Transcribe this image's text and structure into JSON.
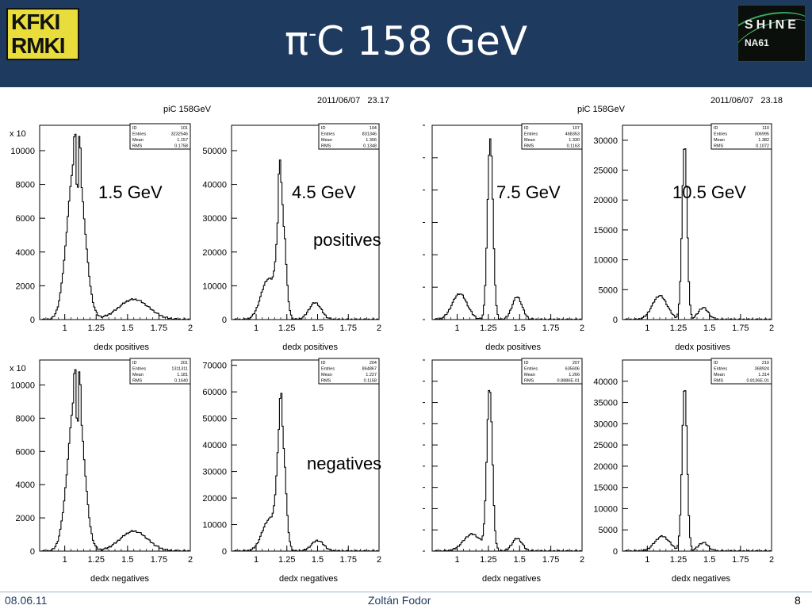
{
  "header": {
    "title_pre": "π",
    "title_sup": "-",
    "title_post": "C 158 GeV",
    "logo_left_line1": "KFKI",
    "logo_left_line2": "RMKI",
    "logo_right_line1": "SHINE",
    "logo_right_line2": "NA61"
  },
  "footer": {
    "date": "08.06.11",
    "author": "Zoltán Fodor",
    "page": "8"
  },
  "row_labels": {
    "positives": "positives",
    "negatives": "negatives"
  },
  "chart_data": [
    {
      "type": "histogram",
      "group": "left",
      "canvas_title": "piC 158GeV",
      "timestamp": "2011/06/07   23.17",
      "panels": [
        {
          "momentum_label": "1.5 GeV",
          "xlabel": "dedx positives",
          "y_multiplier": "x 10",
          "stats": {
            "ID": "101",
            "Entries": "3232546",
            "Mean": "1.157",
            "RMS": "0.1758"
          },
          "xlim": [
            0.8,
            2.0
          ],
          "ylim": [
            0,
            11500
          ],
          "xticks": [
            "1",
            "1.25",
            "1.5",
            "1.75",
            "2"
          ],
          "yticks": [
            0,
            2000,
            4000,
            6000,
            8000,
            10000
          ],
          "peaks": [
            {
              "c": 1.1,
              "s": 0.06,
              "a": 9000
            },
            {
              "c": 1.03,
              "s": 0.05,
              "a": 2000
            },
            {
              "c": 1.55,
              "s": 0.12,
              "a": 1200
            }
          ],
          "spikes": [
            [
              1.08,
              1200
            ],
            [
              1.1,
              -1800
            ],
            [
              1.12,
              1600
            ]
          ]
        },
        {
          "momentum_label": "4.5 GeV",
          "xlabel": "dedx positives",
          "y_multiplier": "",
          "stats": {
            "ID": "104",
            "Entries": "831346",
            "Mean": "1.306",
            "RMS": "0.1348"
          },
          "xlim": [
            0.8,
            2.0
          ],
          "ylim": [
            0,
            57500
          ],
          "xticks": [
            "1",
            "1.25",
            "1.5",
            "1.75",
            "2"
          ],
          "yticks": [
            0,
            10000,
            20000,
            30000,
            40000,
            50000
          ],
          "peaks": [
            {
              "c": 1.205,
              "s": 0.03,
              "a": 38000
            },
            {
              "c": 1.1,
              "s": 0.06,
              "a": 12000
            },
            {
              "c": 1.48,
              "s": 0.05,
              "a": 5000
            }
          ],
          "spikes": [
            [
              1.19,
              8000
            ],
            [
              1.22,
              -4000
            ]
          ]
        },
        {
          "momentum_label": "7.5 GeV",
          "xlabel": "dedx positives",
          "y_multiplier": "",
          "stats": {
            "ID": "107",
            "Entries": "468353",
            "Mean": "1.330",
            "RMS": "0.1163"
          },
          "xlim": [
            0.8,
            2.0
          ],
          "ylim": [
            0,
            30000
          ],
          "xticks": [
            "1",
            "1.25",
            "1.5",
            "1.75",
            "2"
          ],
          "yticks": [],
          "peaks": [
            {
              "c": 1.265,
              "s": 0.022,
              "a": 28000
            },
            {
              "c": 1.02,
              "s": 0.06,
              "a": 4000
            },
            {
              "c": 1.48,
              "s": 0.04,
              "a": 3500
            }
          ],
          "spikes": []
        },
        {
          "momentum_label": "10.5 GeV",
          "xlabel": "dedx positives",
          "y_multiplier": "",
          "stats": {
            "ID": "110",
            "Entries": "306995",
            "Mean": "1.382",
            "RMS": "0.1072"
          },
          "xlim": [
            0.8,
            2.0
          ],
          "ylim": [
            0,
            32500
          ],
          "xticks": [
            "1",
            "1.25",
            "1.5",
            "1.75",
            "2"
          ],
          "yticks": [
            0,
            5000,
            10000,
            15000,
            20000,
            25000,
            30000
          ],
          "peaks": [
            {
              "c": 1.3,
              "s": 0.02,
              "a": 29500
            },
            {
              "c": 1.1,
              "s": 0.06,
              "a": 4000
            },
            {
              "c": 1.45,
              "s": 0.04,
              "a": 2000
            }
          ],
          "spikes": []
        },
        {
          "momentum_label": "",
          "xlabel": "dedx negatives",
          "y_multiplier": "x 10",
          "stats": {
            "ID": "201",
            "Entries": "1311311",
            "Mean": "1.181",
            "RMS": "0.1640"
          },
          "xlim": [
            0.8,
            2.0
          ],
          "ylim": [
            0,
            11500
          ],
          "xticks": [
            "1",
            "1.25",
            "1.5",
            "1.75",
            "2"
          ],
          "yticks": [
            0,
            2000,
            4000,
            6000,
            8000,
            10000
          ],
          "peaks": [
            {
              "c": 1.1,
              "s": 0.055,
              "a": 9000
            },
            {
              "c": 1.03,
              "s": 0.05,
              "a": 2000
            },
            {
              "c": 1.55,
              "s": 0.11,
              "a": 1200
            }
          ],
          "spikes": [
            [
              1.08,
              1200
            ],
            [
              1.1,
              -1800
            ],
            [
              1.12,
              1600
            ]
          ]
        },
        {
          "momentum_label": "",
          "xlabel": "dedx negatives",
          "y_multiplier": "",
          "stats": {
            "ID": "204",
            "Entries": "864867",
            "Mean": "1.227",
            "RMS": "0.1158"
          },
          "xlim": [
            0.8,
            2.0
          ],
          "ylim": [
            0,
            72000
          ],
          "xticks": [
            "1",
            "1.25",
            "1.5",
            "1.75",
            "2"
          ],
          "yticks": [
            0,
            10000,
            20000,
            30000,
            40000,
            50000,
            60000,
            70000
          ],
          "peaks": [
            {
              "c": 1.205,
              "s": 0.03,
              "a": 50000
            },
            {
              "c": 1.11,
              "s": 0.06,
              "a": 12000
            },
            {
              "c": 1.5,
              "s": 0.05,
              "a": 4000
            }
          ],
          "spikes": [
            [
              1.2,
              6000
            ],
            [
              1.22,
              -3000
            ]
          ]
        },
        {
          "momentum_label": "",
          "xlabel": "dedx negatives",
          "y_multiplier": "",
          "stats": {
            "ID": "207",
            "Entries": "635606",
            "Mean": "1.266",
            "RMS": "0.8886E-01"
          },
          "xlim": [
            0.8,
            2.0
          ],
          "ylim": [
            0,
            45000
          ],
          "xticks": [
            "1",
            "1.25",
            "1.5",
            "1.75",
            "2"
          ],
          "yticks": [],
          "peaks": [
            {
              "c": 1.26,
              "s": 0.022,
              "a": 38000
            },
            {
              "c": 1.12,
              "s": 0.07,
              "a": 4000
            },
            {
              "c": 1.48,
              "s": 0.04,
              "a": 3000
            }
          ],
          "spikes": []
        },
        {
          "momentum_label": "",
          "xlabel": "dedx negatives",
          "y_multiplier": "",
          "stats": {
            "ID": "210",
            "Entries": "368924",
            "Mean": "1.314",
            "RMS": "0.8136E-01"
          },
          "xlim": [
            0.8,
            2.0
          ],
          "ylim": [
            0,
            45000
          ],
          "xticks": [
            "1",
            "1.25",
            "1.5",
            "1.75",
            "2"
          ],
          "yticks": [
            0,
            5000,
            10000,
            15000,
            20000,
            25000,
            30000,
            35000,
            40000
          ],
          "peaks": [
            {
              "c": 1.3,
              "s": 0.02,
              "a": 39000
            },
            {
              "c": 1.12,
              "s": 0.06,
              "a": 3500
            },
            {
              "c": 1.45,
              "s": 0.04,
              "a": 2000
            }
          ],
          "spikes": []
        }
      ]
    },
    {
      "type": "histogram",
      "group": "right",
      "canvas_title": "piC 158GeV",
      "timestamp": "2011/06/07   23.18"
    }
  ]
}
